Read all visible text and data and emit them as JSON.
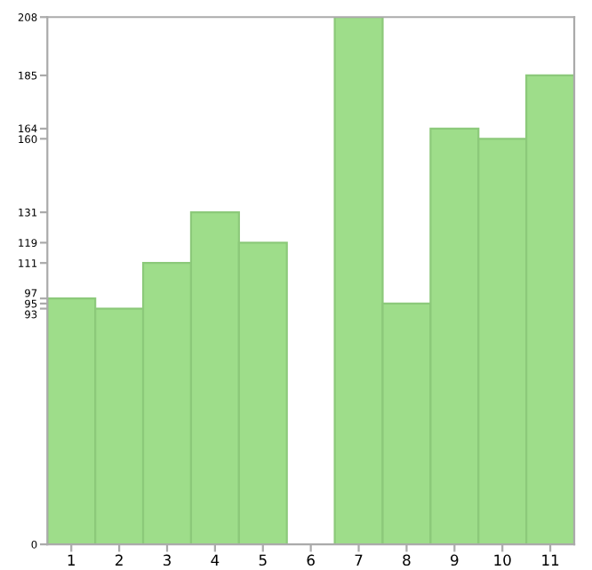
{
  "chart_data": {
    "type": "bar",
    "categories": [
      "1",
      "2",
      "3",
      "4",
      "5",
      "6",
      "7",
      "8",
      "9",
      "10",
      "11"
    ],
    "values": [
      97,
      93,
      111,
      131,
      119,
      0,
      208,
      95,
      164,
      160,
      185
    ],
    "color": "#9edd8a",
    "ylim": [
      0,
      208
    ],
    "yticks": [
      0,
      93,
      95,
      97,
      111,
      119,
      131,
      160,
      164,
      185,
      208
    ],
    "grid": false
  }
}
